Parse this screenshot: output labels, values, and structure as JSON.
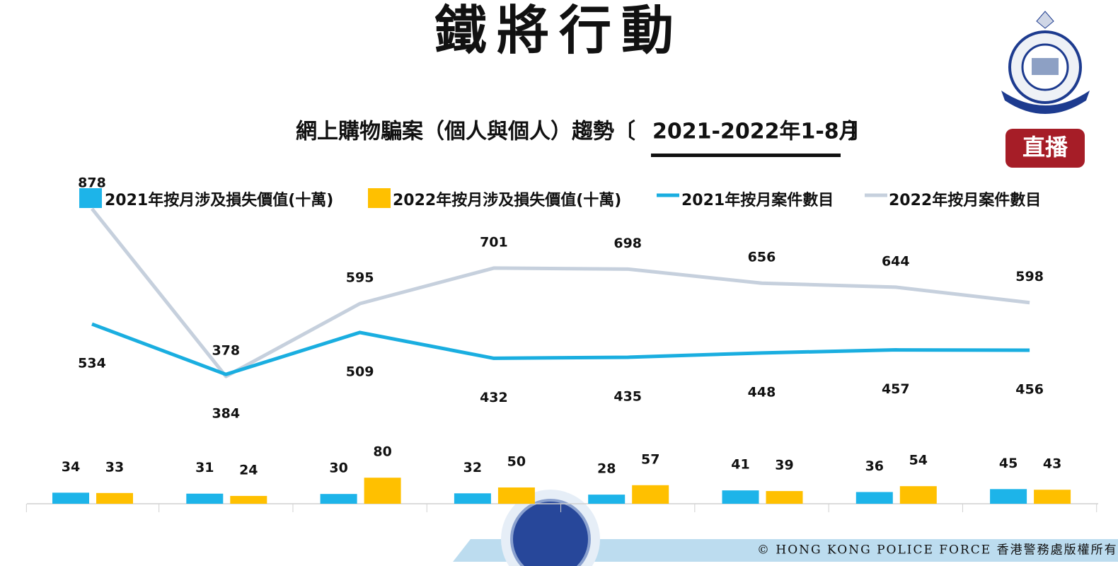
{
  "title": "鐵將行動",
  "broadcast_badge": "直播",
  "copyright": "© HONG KONG POLICE FORCE   香港警務處版權所有",
  "chart_data": {
    "type": "combo",
    "subtitle": [
      "網上購物騙案（個人與個人）趨勢〔",
      "2021-2022年1-8月",
      "〕"
    ],
    "categories": [
      null,
      null,
      null,
      null,
      null,
      null,
      null,
      null
    ],
    "series": [
      {
        "name": "2021年按月涉及損失價值(十萬)",
        "type": "bar",
        "color": "#1db4e9",
        "values": [
          34,
          31,
          30,
          32,
          28,
          41,
          36,
          45
        ]
      },
      {
        "name": "2022年按月涉及損失價值(十萬)",
        "type": "bar",
        "color": "#ffc000",
        "values": [
          33,
          24,
          80,
          50,
          57,
          39,
          54,
          43
        ]
      },
      {
        "name": "2021年按月案件數目",
        "type": "line",
        "color": "#1aaee0",
        "values": [
          534,
          384,
          509,
          432,
          435,
          448,
          457,
          456
        ]
      },
      {
        "name": "2022年按月案件數目",
        "type": "line",
        "color": "#c6d0dd",
        "values": [
          878,
          378,
          595,
          701,
          698,
          656,
          644,
          598
        ]
      }
    ]
  }
}
